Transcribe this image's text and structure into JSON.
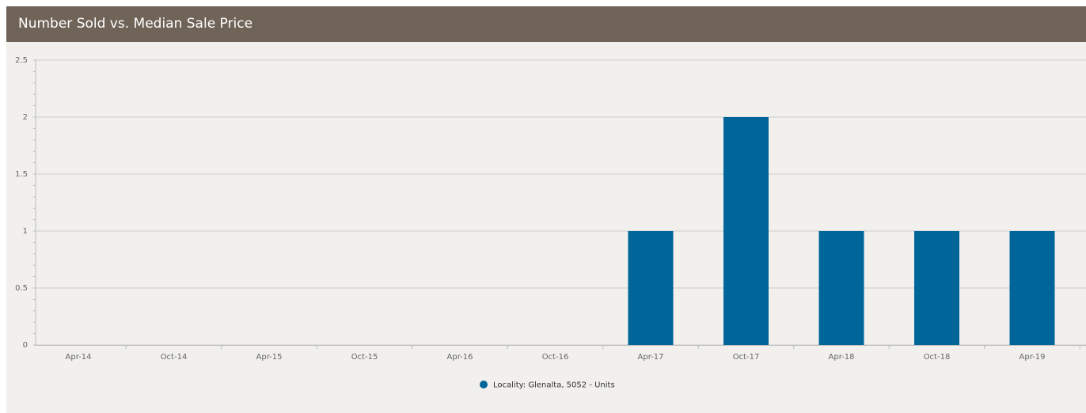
{
  "panel": {
    "title": "Number Sold vs. Median Sale Price"
  },
  "colors": {
    "header": "#706357",
    "background": "#f1f0ec",
    "bar": "#006699",
    "grid": "#cccccc"
  },
  "chart_data": {
    "type": "bar",
    "title": "Number Sold vs. Median Sale Price",
    "xlabel": "",
    "ylabel": "",
    "categories": [
      "Apr-14",
      "Oct-14",
      "Apr-15",
      "Oct-15",
      "Apr-16",
      "Oct-16",
      "Apr-17",
      "Oct-17",
      "Apr-18",
      "Oct-18",
      "Apr-19"
    ],
    "series": [
      {
        "name": "Locality: Glenalta, 5052 - Units",
        "values": [
          0,
          0,
          0,
          0,
          0,
          0,
          1,
          2,
          1,
          1,
          1
        ]
      }
    ],
    "ylim": [
      0,
      2.5
    ],
    "yticks": [
      "0",
      "0.5",
      "1",
      "1.5",
      "2",
      "2.5"
    ],
    "grid": true,
    "legend_position": "bottom-center"
  }
}
